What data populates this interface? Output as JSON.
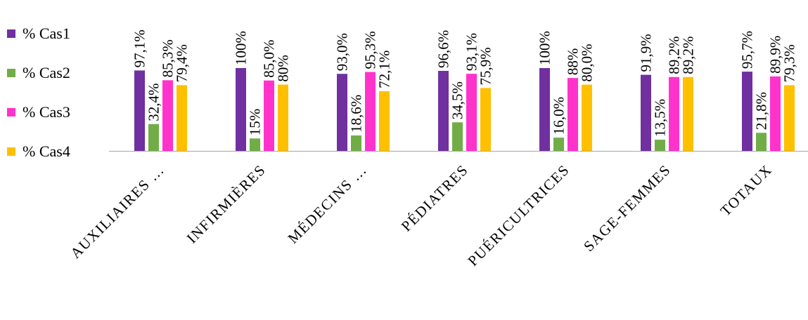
{
  "chart_data": {
    "type": "bar",
    "categories": [
      "AUXILIAIRES …",
      "INFIRMIÈRES",
      "MÉDECINS …",
      "PÉDIATRES",
      "PUÉRICULTRICES",
      "SAGE-FEMMES",
      "TOTAUX"
    ],
    "series": [
      {
        "name": "% Cas1",
        "color": "#7030A0",
        "values": [
          97.1,
          100,
          93.0,
          96.6,
          100,
          91.9,
          95.7
        ],
        "labels": [
          "97,1%",
          "100%",
          "93,0%",
          "96,6%",
          "100%",
          "91,9%",
          "95,7%"
        ]
      },
      {
        "name": "% Cas2",
        "color": "#70AD47",
        "values": [
          32.4,
          15,
          18.6,
          34.5,
          16.0,
          13.5,
          21.8
        ],
        "labels": [
          "32,4%",
          "15%",
          "18,6%",
          "34,5%",
          "16,0%",
          "13,5%",
          "21,8%"
        ]
      },
      {
        "name": "% Cas3",
        "color": "#FF33CC",
        "values": [
          85.3,
          85.0,
          95.3,
          93.1,
          88,
          89.2,
          89.9
        ],
        "labels": [
          "85,3%",
          "85,0%",
          "95,3%",
          "93,1%",
          "88%",
          "89,2%",
          "89,9%"
        ]
      },
      {
        "name": "% Cas4",
        "color": "#FFC000",
        "values": [
          79.4,
          80,
          72.1,
          75.9,
          80.0,
          89.2,
          79.3
        ],
        "labels": [
          "79,4%",
          "80%",
          "72,1%",
          "75,9%",
          "80,0%",
          "89,2%",
          "79,3%"
        ]
      }
    ],
    "ylim": [
      0,
      100
    ],
    "grid": false,
    "legend_position": "left"
  }
}
